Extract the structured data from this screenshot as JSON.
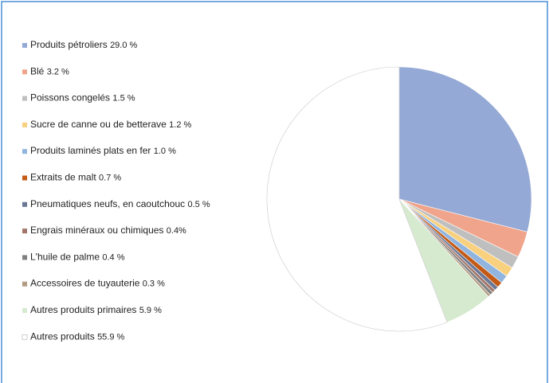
{
  "chart_data": {
    "type": "pie",
    "categories": [
      "Produits pétroliers",
      "Blé",
      "Poissons congelés",
      "Sucre de canne ou de betterave",
      "Produits laminés plats en fer",
      "Extraits de malt",
      "Pneumatiques neufs, en caoutchouc",
      "Engrais minéraux ou chimiques",
      "L'huile de palme",
      "Accessoires de tuyauterie",
      "Autres produits primaires",
      "Autres produits"
    ],
    "values": [
      29.0,
      3.2,
      1.5,
      1.2,
      1.0,
      0.7,
      0.5,
      0.4,
      0.4,
      0.3,
      5.9,
      55.9
    ],
    "value_labels": [
      "29.0 %",
      "3.2 %",
      "1.5 %",
      "1.2 %",
      "1.0 %",
      "0.7 %",
      "0.5 %",
      "0.4%",
      "0.4 %",
      "0.3 %",
      "5.9 %",
      "55.9 %"
    ],
    "colors": [
      "#94a9d5",
      "#f0a48c",
      "#bfbfbf",
      "#f8d07e",
      "#91b5df",
      "#c45a16",
      "#6a7896",
      "#a2766a",
      "#808080",
      "#b39a82",
      "#d6eacf",
      "#ffffff"
    ],
    "legend": "left"
  }
}
